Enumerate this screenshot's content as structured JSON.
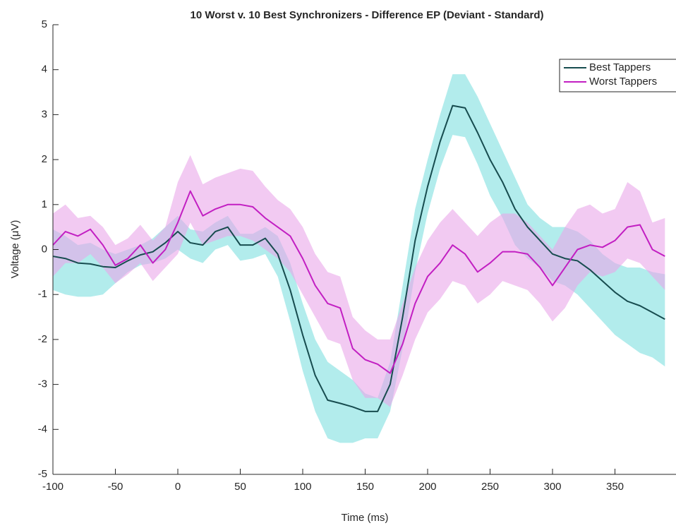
{
  "chart_data": {
    "type": "line",
    "title": "10 Worst v. 10 Best Synchronizers - Difference EP (Deviant - Standard)",
    "x_label": "Time (ms)",
    "y_label": "Voltage (μV)",
    "x": [
      -100,
      -90,
      -80,
      -70,
      -60,
      -50,
      -40,
      -30,
      -20,
      -10,
      0,
      10,
      20,
      30,
      40,
      50,
      60,
      70,
      80,
      90,
      100,
      110,
      120,
      130,
      140,
      150,
      160,
      170,
      180,
      190,
      200,
      210,
      220,
      230,
      240,
      250,
      260,
      270,
      280,
      290,
      300,
      310,
      320,
      330,
      340,
      350,
      360,
      370,
      380,
      390
    ],
    "series": [
      {
        "name": "Best Tappers",
        "color": "#174c4f",
        "band_color": "#7fdfdf",
        "values": [
          -0.15,
          -0.2,
          -0.3,
          -0.32,
          -0.38,
          -0.4,
          -0.25,
          -0.12,
          -0.05,
          0.15,
          0.4,
          0.15,
          0.1,
          0.4,
          0.5,
          0.1,
          0.1,
          0.25,
          -0.1,
          -0.9,
          -1.9,
          -2.8,
          -3.35,
          -3.42,
          -3.5,
          -3.6,
          -3.6,
          -3.0,
          -1.5,
          0.2,
          1.4,
          2.4,
          3.2,
          3.15,
          2.6,
          2.0,
          1.5,
          0.9,
          0.5,
          0.2,
          -0.1,
          -0.2,
          -0.25,
          -0.45,
          -0.7,
          -0.95,
          -1.15,
          -1.25,
          -1.4,
          -1.55
        ],
        "upper": [
          0.45,
          0.3,
          0.1,
          0.15,
          0.0,
          -0.1,
          0.0,
          0.1,
          0.25,
          0.5,
          0.75,
          0.45,
          0.4,
          0.6,
          0.75,
          0.35,
          0.35,
          0.5,
          0.3,
          -0.3,
          -1.2,
          -2.0,
          -2.5,
          -2.7,
          -2.9,
          -3.2,
          -3.3,
          -2.5,
          -0.8,
          0.9,
          2.0,
          3.0,
          3.9,
          3.9,
          3.4,
          2.8,
          2.2,
          1.6,
          1.0,
          0.7,
          0.5,
          0.5,
          0.4,
          0.2,
          -0.1,
          -0.3,
          -0.4,
          -0.4,
          -0.5,
          -0.55
        ],
        "lower": [
          -0.9,
          -1.0,
          -1.05,
          -1.05,
          -1.0,
          -0.75,
          -0.5,
          -0.35,
          -0.3,
          -0.2,
          0.0,
          -0.2,
          -0.3,
          0.0,
          0.1,
          -0.25,
          -0.2,
          -0.1,
          -0.6,
          -1.6,
          -2.7,
          -3.6,
          -4.2,
          -4.3,
          -4.3,
          -4.2,
          -4.2,
          -3.6,
          -2.2,
          -0.5,
          0.8,
          1.8,
          2.55,
          2.5,
          1.9,
          1.2,
          0.7,
          0.1,
          -0.2,
          -0.4,
          -0.7,
          -0.8,
          -1.0,
          -1.3,
          -1.6,
          -1.9,
          -2.1,
          -2.3,
          -2.4,
          -2.6
        ]
      },
      {
        "name": "Worst Tappers",
        "color": "#c21fc2",
        "band_color": "#eaa6ea",
        "values": [
          0.1,
          0.4,
          0.3,
          0.45,
          0.1,
          -0.35,
          -0.2,
          0.1,
          -0.3,
          0.0,
          0.6,
          1.3,
          0.75,
          0.9,
          1.0,
          1.0,
          0.95,
          0.7,
          0.5,
          0.3,
          -0.2,
          -0.8,
          -1.2,
          -1.3,
          -2.2,
          -2.45,
          -2.55,
          -2.75,
          -2.1,
          -1.2,
          -0.6,
          -0.3,
          0.1,
          -0.1,
          -0.5,
          -0.3,
          -0.05,
          -0.05,
          -0.1,
          -0.4,
          -0.8,
          -0.4,
          0.0,
          0.1,
          0.05,
          0.2,
          0.5,
          0.55,
          0.0,
          -0.15
        ],
        "upper": [
          0.8,
          1.0,
          0.7,
          0.75,
          0.5,
          0.1,
          0.25,
          0.55,
          0.2,
          0.5,
          1.5,
          2.1,
          1.45,
          1.6,
          1.7,
          1.8,
          1.75,
          1.4,
          1.1,
          0.9,
          0.5,
          -0.1,
          -0.5,
          -0.6,
          -1.5,
          -1.8,
          -2.0,
          -2.0,
          -1.2,
          -0.4,
          0.2,
          0.6,
          0.9,
          0.6,
          0.3,
          0.6,
          0.8,
          0.8,
          0.6,
          0.3,
          0.0,
          0.5,
          0.9,
          1.0,
          0.8,
          0.9,
          1.5,
          1.3,
          0.6,
          0.7
        ],
        "lower": [
          -0.6,
          -0.3,
          -0.3,
          -0.1,
          -0.4,
          -0.75,
          -0.55,
          -0.3,
          -0.7,
          -0.4,
          -0.1,
          0.6,
          0.1,
          0.2,
          0.3,
          0.3,
          0.2,
          0.0,
          -0.2,
          -0.5,
          -1.0,
          -1.5,
          -2.0,
          -2.1,
          -2.9,
          -3.3,
          -3.3,
          -3.5,
          -2.8,
          -2.0,
          -1.4,
          -1.1,
          -0.7,
          -0.8,
          -1.2,
          -1.0,
          -0.7,
          -0.8,
          -0.9,
          -1.2,
          -1.6,
          -1.3,
          -0.8,
          -0.5,
          -0.6,
          -0.5,
          -0.2,
          -0.3,
          -0.6,
          -0.9
        ]
      }
    ],
    "xlim": [
      -100,
      400
    ],
    "ylim": [
      -5,
      5
    ],
    "xticks": [
      -100,
      -50,
      0,
      50,
      100,
      150,
      200,
      250,
      300,
      350
    ],
    "yticks": [
      -5,
      -4,
      -3,
      -2,
      -1,
      0,
      1,
      2,
      3,
      4,
      5
    ],
    "legend": "upper right",
    "grid": false
  }
}
